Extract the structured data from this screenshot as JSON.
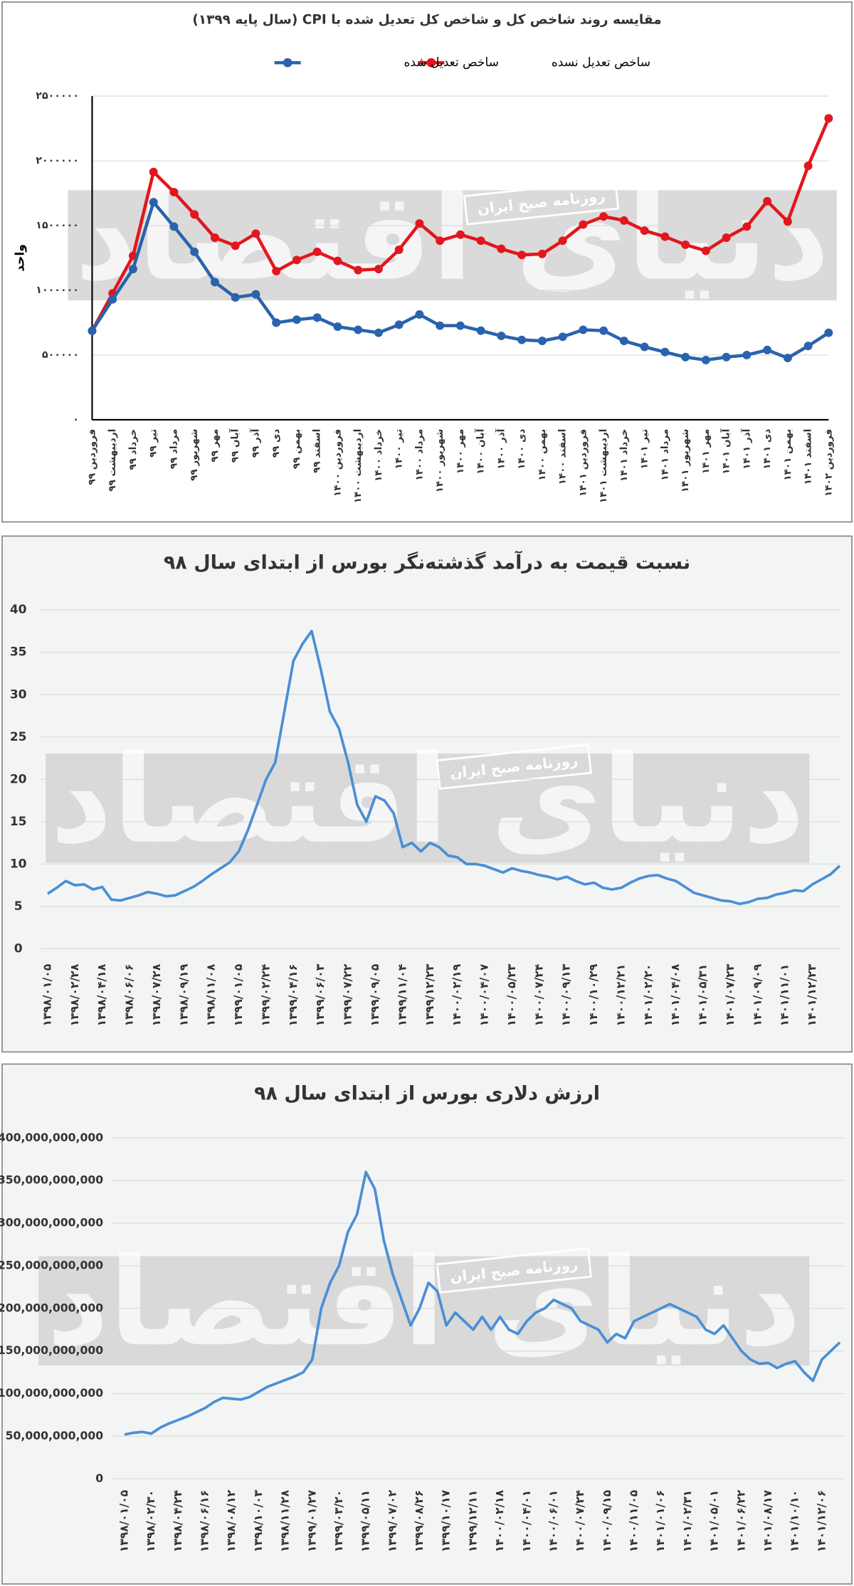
{
  "watermark": {
    "logo": "دنیای اقتصاد",
    "badge": "روزنامه صبح ایران"
  },
  "chart_data": [
    {
      "type": "line",
      "title": "مقایسه روند شاخص کل و شاخص کل تعدیل شده با  CPI (سال پایه ۱۳۹۹)",
      "y_label": "واحد",
      "markers": true,
      "grid": true,
      "categories": [
        "فروردین ۹۹",
        "اردیبهشت ۹۹",
        "خرداد ۹۹",
        "تیر ۹۹",
        "مرداد ۹۹",
        "شهریور ۹۹",
        "مهر ۹۹",
        "آبان ۹۹",
        "آذر ۹۹",
        "دی ۹۹",
        "بهمن ۹۹",
        "اسفند ۹۹",
        "فروردین ۱۴۰۰",
        "اردیبهشت ۱۴۰۰",
        "خرداد ۱۴۰۰",
        "تیر ۱۴۰۰",
        "مرداد ۱۴۰۰",
        "شهریور ۱۴۰۰",
        "مهر ۱۴۰۰",
        "آبان ۱۴۰۰",
        "آذر ۱۴۰۰",
        "دی ۱۴۰۰",
        "بهمن ۱۴۰۰",
        "اسفند ۱۴۰۰",
        "فروردین ۱۴۰۱",
        "اردیبهشت ۱۴۰۱",
        "خرداد ۱۴۰۱",
        "تیر ۱۴۰۱",
        "مرداد ۱۴۰۱",
        "شهریور ۱۴۰۱",
        "مهر ۱۴۰۱",
        "آبان ۱۴۰۱",
        "آذر ۱۴۰۱",
        "دی ۱۴۰۱",
        "بهمن ۱۴۰۱",
        "اسفند ۱۴۰۱",
        "فروردین ۱۴۰۲"
      ],
      "series": [
        {
          "name": "ساخص تعدیل نسده",
          "color": "#e3161d",
          "values": [
            687000,
            977000,
            1266000,
            1914000,
            1758000,
            1586000,
            1406000,
            1344000,
            1438000,
            1148000,
            1234000,
            1297000,
            1227000,
            1156000,
            1164000,
            1313000,
            1516000,
            1383000,
            1430000,
            1383000,
            1320000,
            1273000,
            1281000,
            1383000,
            1508000,
            1570000,
            1539000,
            1461000,
            1414000,
            1352000,
            1305000,
            1406000,
            1492000,
            1688000,
            1531000,
            1961000,
            2328000
          ]
        },
        {
          "name": "ساخص تعدیل شده",
          "color": "#2a63ad",
          "values": [
            687000,
            930000,
            1164000,
            1680000,
            1492000,
            1297000,
            1063000,
            945000,
            969000,
            750000,
            773000,
            789000,
            719000,
            695000,
            672000,
            734000,
            813000,
            727000,
            727000,
            688000,
            648000,
            617000,
            609000,
            641000,
            695000,
            688000,
            609000,
            563000,
            523000,
            484000,
            461000,
            484000,
            500000,
            539000,
            477000,
            570000,
            672000
          ]
        }
      ],
      "ylim": [
        0,
        2500000
      ],
      "yticks": [
        {
          "value": 0,
          "label": "۰"
        },
        {
          "value": 500000,
          "label": "۵۰۰۰۰۰"
        },
        {
          "value": 1000000,
          "label": "۱۰۰۰۰۰۰"
        },
        {
          "value": 1500000,
          "label": "۱۵۰۰۰۰۰"
        },
        {
          "value": 2000000,
          "label": "۲۰۰۰۰۰۰"
        },
        {
          "value": 2500000,
          "label": "۲۵۰۰۰۰۰"
        }
      ]
    },
    {
      "type": "line",
      "title": "نسبت قیمت به درآمد گذشته‌نگر بورس از ابتدای سال ۹۸",
      "color": "#4a8fd4",
      "markers": false,
      "grid": true,
      "categories": [
        "۱۳۹۸/۰۱/۰۵",
        null,
        null,
        "۱۳۹۸/۰۲/۲۸",
        null,
        null,
        "۱۳۹۸/۰۴/۱۸",
        null,
        null,
        "۱۳۹۸/۰۶/۰۶",
        null,
        null,
        "۱۳۹۸/۰۷/۲۸",
        null,
        null,
        "۱۳۹۸/۰۹/۱۹",
        null,
        null,
        "۱۳۹۸/۱۱/۰۸",
        null,
        null,
        "۱۳۹۹/۰۱/۰۵",
        null,
        null,
        "۱۳۹۹/۰۲/۲۴",
        null,
        null,
        "۱۳۹۹/۰۴/۱۶",
        null,
        null,
        "۱۳۹۹/۰۶/۰۳",
        null,
        null,
        "۱۳۹۹/۰۷/۲۲",
        null,
        null,
        "۱۳۹۹/۰۹/۰۵",
        null,
        null,
        "۱۳۹۹/۱۱/۰۴",
        null,
        null,
        "۱۳۹۹/۱۲/۲۳",
        null,
        null,
        "۱۴۰۰/۰۲/۱۹",
        null,
        null,
        "۱۴۰۰/۰۴/۰۷",
        null,
        null,
        "۱۴۰۰/۰۵/۲۳",
        null,
        null,
        "۱۴۰۰/۰۷/۲۴",
        null,
        null,
        "۱۴۰۰/۰۹/۱۳",
        null,
        null,
        "۱۴۰۰/۱۰/۲۹",
        null,
        null,
        "۱۴۰۰/۱۲/۲۱",
        null,
        null,
        "۱۴۰۱/۰۲/۲۰",
        null,
        null,
        "۱۴۰۱/۰۴/۰۸",
        null,
        null,
        "۱۴۰۱/۰۵/۳۱",
        null,
        null,
        "۱۴۰۱/۰۷/۲۳",
        null,
        null,
        "۱۴۰۱/۰۹/۰۹",
        null,
        null,
        "۱۴۰۱/۱۱/۰۱",
        null,
        null,
        "۱۴۰۱/۱۲/۲۳",
        null,
        null,
        null
      ],
      "values": [
        6.5,
        7.2,
        8.0,
        7.5,
        7.6,
        7.0,
        7.3,
        5.8,
        5.7,
        6.0,
        6.3,
        6.7,
        6.5,
        6.2,
        6.3,
        6.8,
        7.3,
        8.0,
        8.8,
        9.5,
        10.2,
        11.5,
        14,
        17,
        20,
        22,
        28,
        34,
        36,
        37.5,
        33,
        28,
        26,
        22,
        17,
        15,
        18,
        17.5,
        16,
        12,
        12.5,
        11.5,
        12.5,
        12,
        11,
        10.8,
        10,
        10,
        9.8,
        9.4,
        9.0,
        9.5,
        9.2,
        9.0,
        8.7,
        8.5,
        8.2,
        8.5,
        8.0,
        7.6,
        7.8,
        7.2,
        7.0,
        7.2,
        7.8,
        8.3,
        8.6,
        8.7,
        8.3,
        8.0,
        7.3,
        6.6,
        6.3,
        6.0,
        5.7,
        5.6,
        5.3,
        5.5,
        5.9,
        6.0,
        6.4,
        6.6,
        6.9,
        6.8,
        7.6,
        8.2,
        8.8,
        9.8
      ],
      "ylim": [
        0,
        40
      ],
      "yticks": [
        0,
        5,
        10,
        15,
        20,
        25,
        30,
        35,
        40
      ]
    },
    {
      "type": "line",
      "title": "ارزش دلاری بورس از ابتدای سال ۹۸",
      "color": "#4a8fd4",
      "markers": false,
      "grid": true,
      "categories": [
        "۱۳۹۸/۰۱/۰۵",
        null,
        null,
        "۱۳۹۸/۰۲/۳۰",
        null,
        null,
        "۱۳۹۸/۰۴/۲۴",
        null,
        null,
        "۱۳۹۸/۰۶/۱۶",
        null,
        null,
        "۱۳۹۸/۰۸/۱۲",
        null,
        null,
        "۱۳۹۸/۱۰/۰۳",
        null,
        null,
        "۱۳۹۸/۱۱/۲۸",
        null,
        null,
        "۱۳۹۹/۰۱/۲۷",
        null,
        null,
        "۱۳۹۹/۰۳/۲۰",
        null,
        null,
        "۱۳۹۹/۰۵/۱۱",
        null,
        null,
        "۱۳۹۹/۰۷/۰۲",
        null,
        null,
        "۱۳۹۹/۰۸/۲۶",
        null,
        null,
        "۱۳۹۹/۱۰/۱۷",
        null,
        null,
        "۱۳۹۹/۱۲/۱۱",
        null,
        null,
        "۱۴۰۰/۰۲/۱۸",
        null,
        null,
        "۱۴۰۰/۰۴/۰۱",
        null,
        null,
        "۱۴۰۰/۰۶/۰۱",
        null,
        null,
        "۱۴۰۰/۰۷/۲۴",
        null,
        null,
        "۱۴۰۰/۰۹/۱۵",
        null,
        null,
        "۱۴۰۰/۱۱/۰۵",
        null,
        null,
        "۱۴۰۱/۰۱/۰۶",
        null,
        null,
        "۱۴۰۱/۰۲/۳۱",
        null,
        null,
        "۱۴۰۱/۰۵/۰۱",
        null,
        null,
        "۱۴۰۱/۰۶/۲۲",
        null,
        null,
        "۱۴۰۱/۰۸/۱۷",
        null,
        null,
        "۱۴۰۱/۱۰/۱۰",
        null,
        null,
        "۱۴۰۱/۱۲/۰۶",
        null,
        null
      ],
      "values": [
        52000000000,
        54000000000,
        55000000000,
        53000000000,
        60000000000,
        65000000000,
        69000000000,
        73000000000,
        78000000000,
        83000000000,
        90000000000,
        95000000000,
        94000000000,
        93000000000,
        96000000000,
        102000000000,
        108000000000,
        112000000000,
        116000000000,
        120000000000,
        125000000000,
        140000000000,
        200000000000,
        230000000000,
        250000000000,
        290000000000,
        310000000000,
        360000000000,
        340000000000,
        280000000000,
        240000000000,
        210000000000,
        180000000000,
        200000000000,
        230000000000,
        220000000000,
        180000000000,
        195000000000,
        185000000000,
        175000000000,
        190000000000,
        175000000000,
        190000000000,
        175000000000,
        170000000000,
        185000000000,
        195000000000,
        200000000000,
        210000000000,
        205000000000,
        200000000000,
        185000000000,
        180000000000,
        175000000000,
        160000000000,
        170000000000,
        165000000000,
        185000000000,
        190000000000,
        195000000000,
        200000000000,
        205000000000,
        200000000000,
        195000000000,
        190000000000,
        175000000000,
        170000000000,
        180000000000,
        165000000000,
        150000000000,
        140000000000,
        135000000000,
        136000000000,
        130000000000,
        135000000000,
        138000000000,
        125000000000,
        115000000000,
        140000000000,
        150000000000,
        160000000000
      ],
      "ylim": [
        0,
        400000000000
      ],
      "yticks": [
        0,
        {
          "value": 50000000000,
          "label": "50,000,000,000"
        },
        {
          "value": 100000000000,
          "label": "100,000,000,000"
        },
        {
          "value": 150000000000,
          "label": "150,000,000,000"
        },
        {
          "value": 200000000000,
          "label": "200,000,000,000"
        },
        {
          "value": 250000000000,
          "label": "250,000,000,000"
        },
        {
          "value": 300000000000,
          "label": "300,000,000,000"
        },
        {
          "value": 350000000000,
          "label": "350,000,000,000"
        },
        {
          "value": 400000000000,
          "label": "400,000,000,000"
        }
      ]
    }
  ]
}
